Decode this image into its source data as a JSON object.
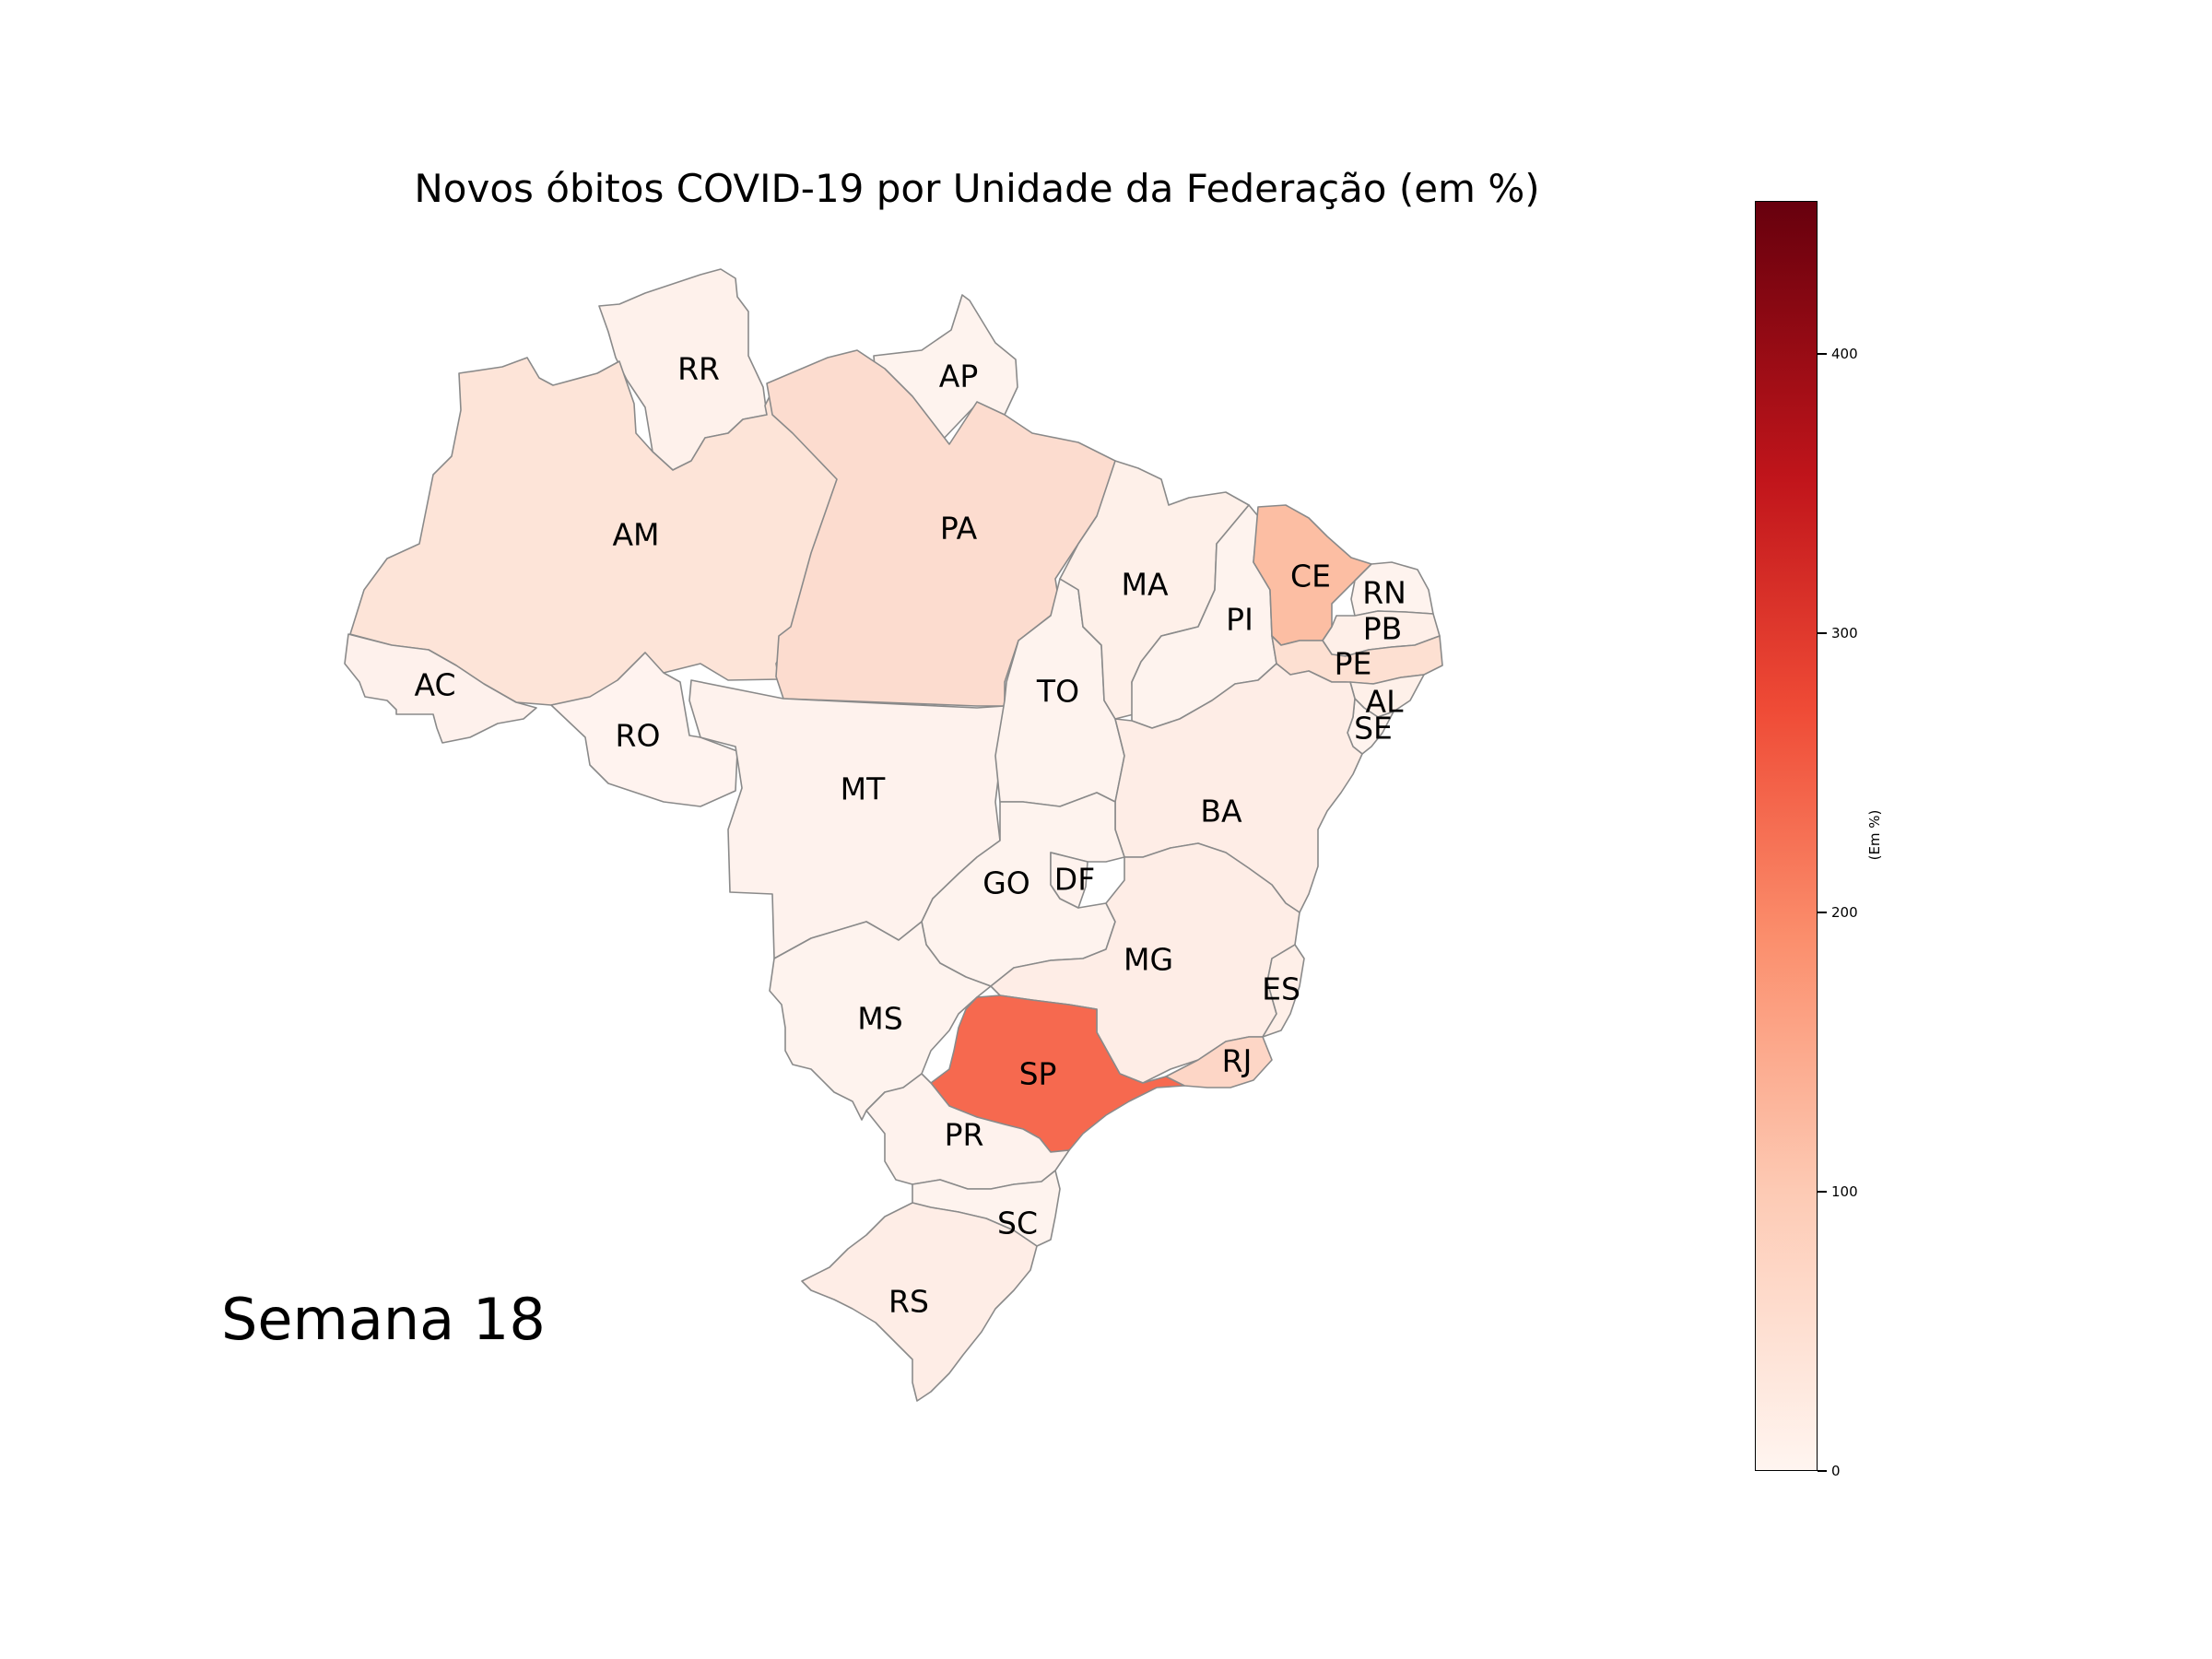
{
  "title": "Novos óbitos COVID-19 por Unidade da Federação (em %)",
  "week_label": "Semana 18",
  "colorbar": {
    "label": "(Em %)",
    "range": [
      0,
      455
    ],
    "colormap": "Reds",
    "ticks": [
      "0",
      "100",
      "200",
      "300",
      "400"
    ]
  },
  "states": [
    {
      "code": "RR",
      "label": "RR",
      "value": 8,
      "color": "#fef1eb"
    },
    {
      "code": "AP",
      "label": "AP",
      "value": 5,
      "color": "#fef3ee"
    },
    {
      "code": "AM",
      "label": "AM",
      "value": 45,
      "color": "#fde4d8"
    },
    {
      "code": "PA",
      "label": "PA",
      "value": 60,
      "color": "#fcdccf"
    },
    {
      "code": "AC",
      "label": "AC",
      "value": 8,
      "color": "#fef1ec"
    },
    {
      "code": "RO",
      "label": "RO",
      "value": 5,
      "color": "#fff3ef"
    },
    {
      "code": "MT",
      "label": "MT",
      "value": 8,
      "color": "#fef2ed"
    },
    {
      "code": "TO",
      "label": "TO",
      "value": 5,
      "color": "#fef3ee"
    },
    {
      "code": "MA",
      "label": "MA",
      "value": 10,
      "color": "#fef0e9"
    },
    {
      "code": "PI",
      "label": "PI",
      "value": 5,
      "color": "#fef3ee"
    },
    {
      "code": "CE",
      "label": "CE",
      "value": 110,
      "color": "#fcbea3"
    },
    {
      "code": "RN",
      "label": "RN",
      "value": 5,
      "color": "#fef3ee"
    },
    {
      "code": "PB",
      "label": "PB",
      "value": 12,
      "color": "#feefe8"
    },
    {
      "code": "PE",
      "label": "PE",
      "value": 55,
      "color": "#fde0d2"
    },
    {
      "code": "AL",
      "label": "AL",
      "value": 10,
      "color": "#fef0e9"
    },
    {
      "code": "SE",
      "label": "SE",
      "value": 5,
      "color": "#fef3ee"
    },
    {
      "code": "BA",
      "label": "BA",
      "value": 15,
      "color": "#feede6"
    },
    {
      "code": "GO",
      "label": "GO",
      "value": 5,
      "color": "#fef3ee"
    },
    {
      "code": "DF",
      "label": "DF",
      "value": 8,
      "color": "#fef2ed"
    },
    {
      "code": "MG",
      "label": "MG",
      "value": 15,
      "color": "#feede6"
    },
    {
      "code": "ES",
      "label": "ES",
      "value": 12,
      "color": "#feefe8"
    },
    {
      "code": "RJ",
      "label": "RJ",
      "value": 70,
      "color": "#fdd6c6"
    },
    {
      "code": "MS",
      "label": "MS",
      "value": 5,
      "color": "#fef3ee"
    },
    {
      "code": "SP",
      "label": "SP",
      "value": 240,
      "color": "#f6694f"
    },
    {
      "code": "PR",
      "label": "PR",
      "value": 8,
      "color": "#fef2ed"
    },
    {
      "code": "SC",
      "label": "SC",
      "value": 5,
      "color": "#fef3ee"
    },
    {
      "code": "RS",
      "label": "RS",
      "value": 15,
      "color": "#feede6"
    }
  ]
}
